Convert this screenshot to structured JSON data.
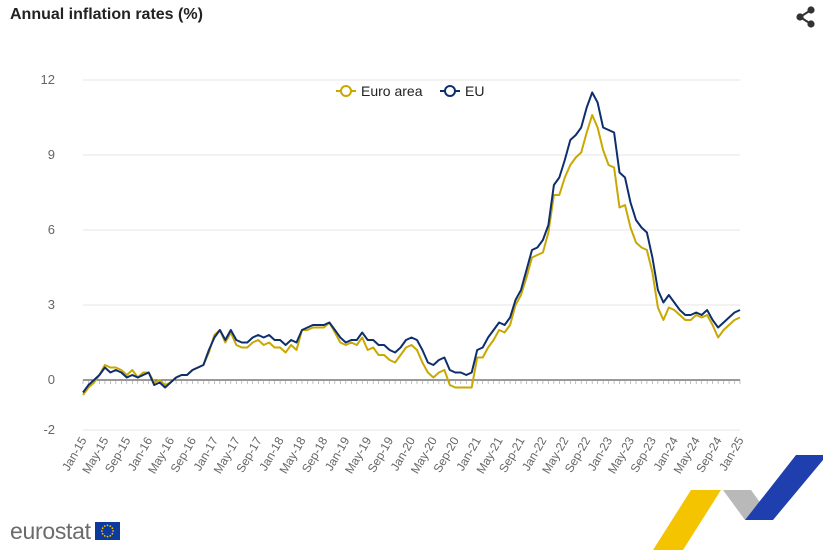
{
  "header": {
    "title": "Annual inflation rates (%)",
    "share_icon": "share-icon"
  },
  "branding": {
    "logo_text": "eurostat",
    "flag_icon": "eu-flag-icon"
  },
  "colors": {
    "euro_area": "#c9a800",
    "eu": "#0e2f6e",
    "grid": "#e6e6e6",
    "axis_text": "#666666",
    "deco_yellow": "#f5c400",
    "deco_blue": "#1f3fae",
    "deco_grey": "#b9b9b9"
  },
  "chart_data": {
    "type": "line",
    "title": "Annual inflation rates (%)",
    "xlabel": "",
    "ylabel": "",
    "ylim": [
      -2,
      12
    ],
    "yticks": [
      -2,
      0,
      3,
      6,
      9,
      12
    ],
    "grid": true,
    "legend_position": "top-center",
    "start_month": "2015-01",
    "end_month": "2025-01",
    "xtick_labels": [
      "Jan-15",
      "May-15",
      "Sep-15",
      "Jan-16",
      "May-16",
      "Sep-16",
      "Jan-17",
      "May-17",
      "Sep-17",
      "Jan-18",
      "May-18",
      "Sep-18",
      "Jan-19",
      "May-19",
      "Sep-19",
      "Jan-20",
      "May-20",
      "Sep-20",
      "Jan-21",
      "May-21",
      "Sep-21",
      "Jan-22",
      "May-22",
      "Sep-22",
      "Jan-23",
      "May-23",
      "Sep-23",
      "Jan-24",
      "May-24",
      "Sep-24",
      "Jan-25"
    ],
    "series": [
      {
        "name": "Euro area",
        "color": "#c9a800",
        "values": [
          -0.6,
          -0.3,
          -0.1,
          0.2,
          0.6,
          0.5,
          0.5,
          0.4,
          0.2,
          0.4,
          0.1,
          0.3,
          0.3,
          -0.1,
          0.0,
          -0.2,
          -0.1,
          0.1,
          0.2,
          0.2,
          0.4,
          0.5,
          0.6,
          1.1,
          1.8,
          2.0,
          1.5,
          1.9,
          1.4,
          1.3,
          1.3,
          1.5,
          1.6,
          1.4,
          1.5,
          1.3,
          1.3,
          1.1,
          1.4,
          1.2,
          2.0,
          2.0,
          2.1,
          2.1,
          2.1,
          2.3,
          1.9,
          1.5,
          1.4,
          1.5,
          1.4,
          1.7,
          1.2,
          1.3,
          1.0,
          1.0,
          0.8,
          0.7,
          1.0,
          1.3,
          1.4,
          1.2,
          0.7,
          0.3,
          0.1,
          0.3,
          0.4,
          -0.2,
          -0.3,
          -0.3,
          -0.3,
          -0.3,
          0.9,
          0.9,
          1.3,
          1.6,
          2.0,
          1.9,
          2.2,
          3.0,
          3.4,
          4.1,
          4.9,
          5.0,
          5.1,
          5.9,
          7.4,
          7.4,
          8.1,
          8.6,
          8.9,
          9.1,
          9.9,
          10.6,
          10.1,
          9.2,
          8.6,
          8.5,
          6.9,
          7.0,
          6.1,
          5.5,
          5.3,
          5.2,
          4.3,
          2.9,
          2.4,
          2.9,
          2.8,
          2.6,
          2.4,
          2.4,
          2.6,
          2.5,
          2.6,
          2.2,
          1.7,
          2.0,
          2.2,
          2.4,
          2.5
        ]
      },
      {
        "name": "EU",
        "color": "#0e2f6e",
        "values": [
          -0.5,
          -0.2,
          0.0,
          0.2,
          0.5,
          0.3,
          0.4,
          0.3,
          0.1,
          0.2,
          0.1,
          0.2,
          0.3,
          -0.2,
          -0.1,
          -0.3,
          -0.1,
          0.1,
          0.2,
          0.2,
          0.4,
          0.5,
          0.6,
          1.2,
          1.7,
          2.0,
          1.6,
          2.0,
          1.6,
          1.5,
          1.5,
          1.7,
          1.8,
          1.7,
          1.8,
          1.6,
          1.6,
          1.4,
          1.6,
          1.5,
          2.0,
          2.1,
          2.2,
          2.2,
          2.2,
          2.3,
          2.0,
          1.7,
          1.5,
          1.6,
          1.6,
          1.9,
          1.6,
          1.6,
          1.4,
          1.4,
          1.2,
          1.1,
          1.3,
          1.6,
          1.7,
          1.6,
          1.2,
          0.7,
          0.6,
          0.8,
          0.9,
          0.4,
          0.3,
          0.3,
          0.2,
          0.3,
          1.2,
          1.3,
          1.7,
          2.0,
          2.3,
          2.2,
          2.5,
          3.2,
          3.6,
          4.4,
          5.2,
          5.3,
          5.6,
          6.2,
          7.8,
          8.1,
          8.8,
          9.6,
          9.8,
          10.1,
          10.9,
          11.5,
          11.1,
          10.1,
          10.0,
          9.9,
          8.3,
          8.1,
          7.1,
          6.4,
          6.1,
          5.9,
          4.9,
          3.6,
          3.1,
          3.4,
          3.1,
          2.8,
          2.6,
          2.6,
          2.7,
          2.6,
          2.8,
          2.4,
          2.1,
          2.3,
          2.5,
          2.7,
          2.8
        ]
      }
    ]
  }
}
